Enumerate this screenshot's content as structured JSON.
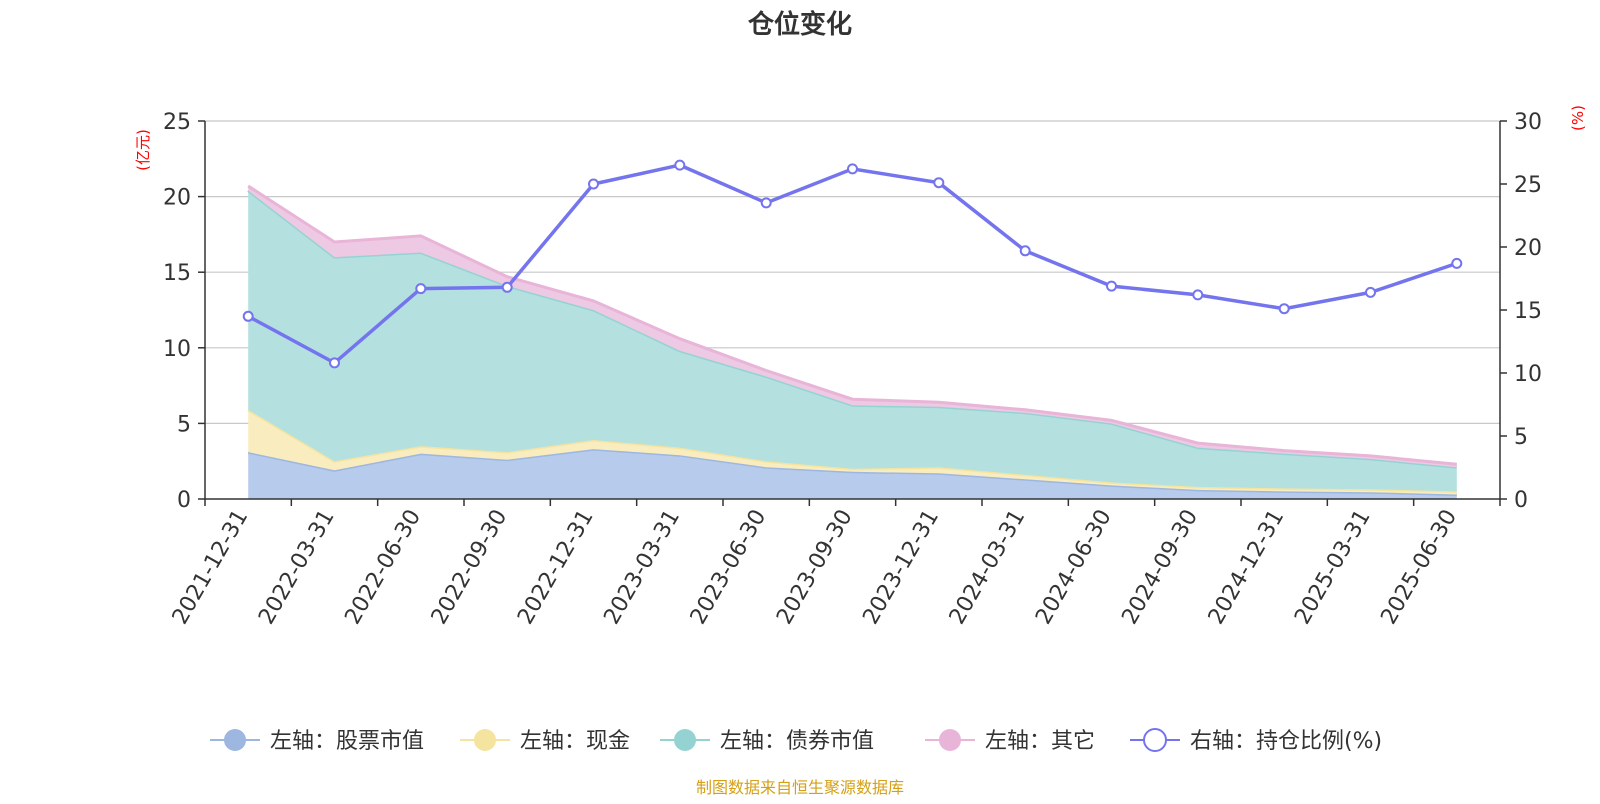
{
  "chart_data": {
    "type": "area",
    "title": "仓位变化",
    "x": [
      "2021-12-31",
      "2022-03-31",
      "2022-06-30",
      "2022-09-30",
      "2022-12-31",
      "2023-03-31",
      "2023-06-30",
      "2023-09-30",
      "2023-12-31",
      "2024-03-31",
      "2024-06-30",
      "2024-09-30",
      "2024-12-31",
      "2025-03-31",
      "2025-06-30"
    ],
    "y_left": {
      "unit_label": "(亿元)",
      "lim": [
        0,
        25
      ],
      "ticks": [
        "0",
        "5",
        "10",
        "15",
        "20",
        "25"
      ]
    },
    "y_right": {
      "unit_label": "(%)",
      "lim": [
        0,
        30
      ],
      "ticks": [
        "0",
        "5",
        "10",
        "15",
        "20",
        "25",
        "30"
      ]
    },
    "stacked": true,
    "grid": true,
    "legend_position": "bottom",
    "series": [
      {
        "name": "左轴：股票市值",
        "axis": "left",
        "type": "area",
        "color": "#9db7e0",
        "fill": "#b7cbec",
        "values": [
          3.1,
          1.9,
          3.0,
          2.6,
          3.3,
          2.9,
          2.1,
          1.8,
          1.7,
          1.3,
          0.9,
          0.6,
          0.5,
          0.45,
          0.3
        ]
      },
      {
        "name": "左轴：现金",
        "axis": "left",
        "type": "area",
        "color": "#f5e4a0",
        "fill": "#f9ecbe",
        "values": [
          2.8,
          0.6,
          0.5,
          0.5,
          0.6,
          0.5,
          0.4,
          0.2,
          0.4,
          0.3,
          0.2,
          0.2,
          0.2,
          0.2,
          0.2
        ]
      },
      {
        "name": "左轴：债券市值",
        "axis": "left",
        "type": "area",
        "color": "#95d3d3",
        "fill": "#b4e0e0",
        "values": [
          14.5,
          13.5,
          12.8,
          11.0,
          8.6,
          6.4,
          5.6,
          4.2,
          4.0,
          4.1,
          3.9,
          2.6,
          2.3,
          2.0,
          1.6
        ]
      },
      {
        "name": "左轴：其它",
        "axis": "left",
        "type": "area",
        "color": "#e8b4d8",
        "fill": "#eec9e3",
        "values": [
          0.3,
          1.0,
          1.1,
          0.6,
          0.6,
          0.8,
          0.4,
          0.4,
          0.3,
          0.2,
          0.2,
          0.3,
          0.2,
          0.2,
          0.2
        ]
      },
      {
        "name": "右轴：持仓比例(%)",
        "axis": "right",
        "type": "line",
        "color": "#7474ee",
        "values": [
          14.5,
          10.8,
          16.7,
          16.8,
          25.0,
          26.5,
          23.5,
          26.2,
          25.1,
          19.7,
          16.9,
          16.2,
          15.1,
          16.4,
          18.7
        ]
      }
    ],
    "source_note": "制图数据来自恒生聚源数据库"
  }
}
